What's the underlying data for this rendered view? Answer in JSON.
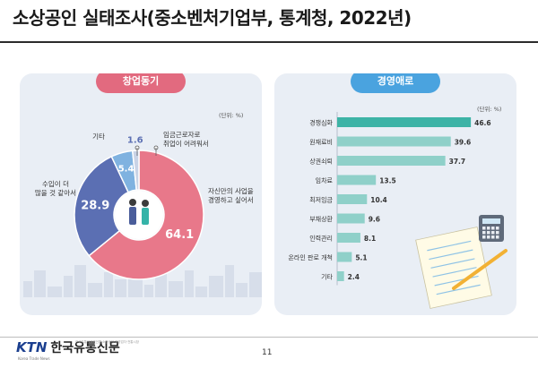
{
  "page": {
    "title": "소상공인 실태조사(중소벤처기업부, 통계청, 2022년)",
    "page_number": "11",
    "logo_mark": "KTN",
    "logo_name": "한국유통신문",
    "logo_tagline": "Korea Trade News",
    "logo_small_text": "한국유통인대표언론 소상공인·자영업자·전통시장"
  },
  "chart_data": [
    {
      "type": "pie",
      "title": "창업동기",
      "unit_note": "(단위: %)",
      "slices": [
        {
          "label": "자신만의 사업을 경영하고 싶어서",
          "value": 64.1,
          "color": "#e8788a"
        },
        {
          "label": "수입이 더 많을 것 같아서",
          "value": 28.9,
          "color": "#5b6fb3"
        },
        {
          "label": "임금근로자로 취업이 어려워서",
          "value": 5.4,
          "color": "#7fb2e0"
        },
        {
          "label": "기타",
          "value": 1.6,
          "color": "#c9d3e6"
        }
      ]
    },
    {
      "type": "bar",
      "orientation": "horizontal",
      "title": "경영애로",
      "unit_note": "(단위: %)",
      "categories": [
        "경쟁심화",
        "원재료비",
        "상권쇠퇴",
        "임차료",
        "최저임금",
        "부채상환",
        "인력관리",
        "온라인 판로 개척",
        "기타"
      ],
      "values": [
        46.6,
        39.6,
        37.7,
        13.5,
        10.4,
        9.6,
        8.1,
        5.1,
        2.4
      ],
      "xlim": [
        0,
        50
      ],
      "colors": {
        "top": "#3db3a6",
        "rest": "#8fd0c9"
      }
    }
  ],
  "colors": {
    "left_pill": "#e26a7f",
    "right_pill": "#4aa3df",
    "panel_bg": "#e9eef5"
  }
}
